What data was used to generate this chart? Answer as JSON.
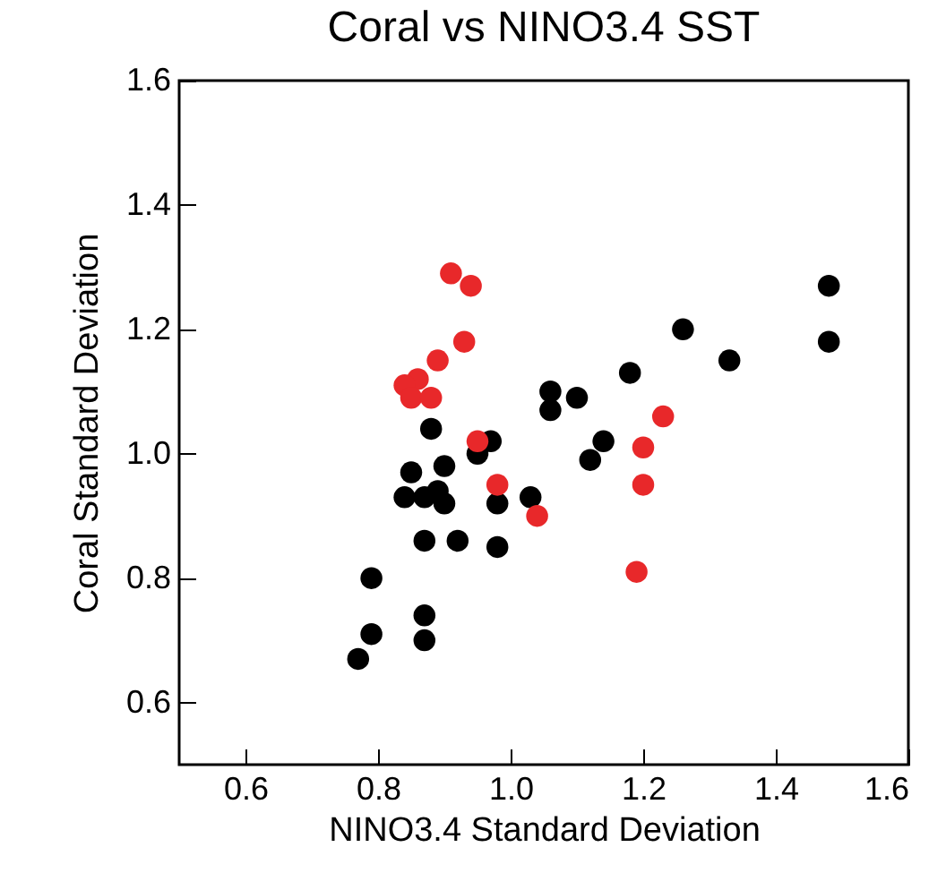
{
  "chart_data": {
    "type": "scatter",
    "title": "Coral vs NINO3.4 SST",
    "xlabel": "NINO3.4 Standard Deviation",
    "ylabel": "Coral Standard Deviation",
    "xlim": [
      0.5,
      1.6
    ],
    "xticks": [
      {
        "value": 0.6,
        "label": "0.6"
      },
      {
        "value": 0.8,
        "label": "0.8"
      },
      {
        "value": 1.0,
        "label": "1.0"
      },
      {
        "value": 1.2,
        "label": "1.2"
      },
      {
        "value": 1.4,
        "label": "1.4"
      },
      {
        "value": 1.6,
        "label": "1.6"
      }
    ],
    "ylim": [
      0.5,
      1.6
    ],
    "yticks": [
      {
        "value": 0.6,
        "label": "0.6"
      },
      {
        "value": 0.8,
        "label": "0.8"
      },
      {
        "value": 1.0,
        "label": "1.0"
      },
      {
        "value": 1.2,
        "label": "1.2"
      },
      {
        "value": 1.4,
        "label": "1.4"
      },
      {
        "value": 1.6,
        "label": "1.6"
      }
    ],
    "grid": false,
    "marker": "circle",
    "series": [
      {
        "color": "#000000",
        "x": [
          0.88,
          0.97,
          0.95,
          0.85,
          0.9,
          0.84,
          0.87,
          0.89,
          0.9,
          0.98,
          1.03,
          0.87,
          0.92,
          0.98,
          0.79,
          1.06,
          1.06,
          0.87,
          0.79,
          0.87,
          0.77,
          1.48,
          1.48,
          1.26,
          1.33,
          1.18,
          1.1,
          1.14,
          1.12
        ],
        "values": [
          1.04,
          1.02,
          1.0,
          0.97,
          0.98,
          0.93,
          0.93,
          0.94,
          0.92,
          0.92,
          0.93,
          0.86,
          0.86,
          0.85,
          0.8,
          1.1,
          1.07,
          0.74,
          0.71,
          0.7,
          0.67,
          1.27,
          1.18,
          1.2,
          1.15,
          1.13,
          1.09,
          1.02,
          0.99
        ]
      },
      {
        "color": "#e8282a",
        "x": [
          0.91,
          0.94,
          0.93,
          0.89,
          0.86,
          0.84,
          0.85,
          0.88,
          0.95,
          0.98,
          1.04,
          1.23,
          1.2,
          1.2,
          1.19
        ],
        "values": [
          1.29,
          1.27,
          1.18,
          1.15,
          1.12,
          1.11,
          1.09,
          1.09,
          1.02,
          0.95,
          0.9,
          1.06,
          1.01,
          0.95,
          0.81
        ]
      }
    ]
  }
}
